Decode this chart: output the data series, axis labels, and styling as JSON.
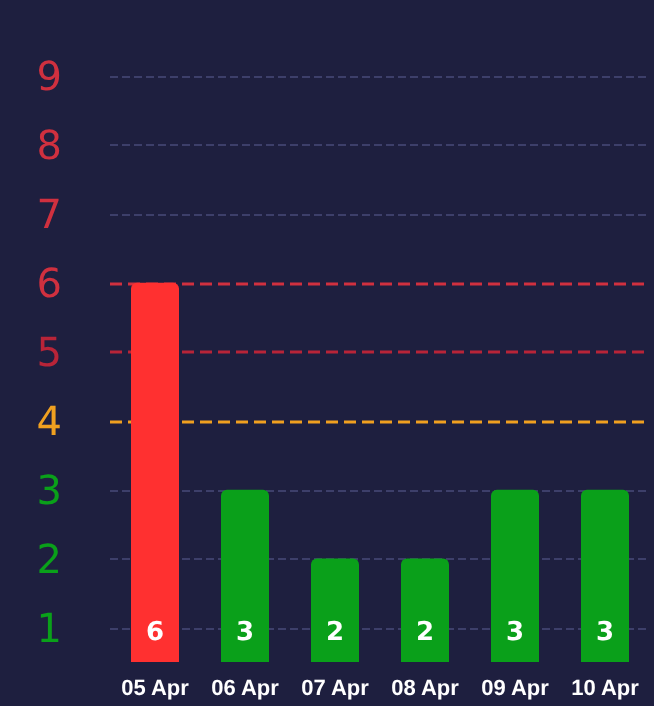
{
  "chart_data": {
    "type": "bar",
    "categories": [
      "05 Apr",
      "06 Apr",
      "07 Apr",
      "08 Apr",
      "09 Apr",
      "10 Apr"
    ],
    "values": [
      6,
      3,
      2,
      2,
      3,
      3
    ],
    "colors": [
      "#ff3030",
      "#0aa01a",
      "#0aa01a",
      "#0aa01a",
      "#0aa01a",
      "#0aa01a"
    ],
    "ylim": [
      0.5,
      9
    ],
    "yticks": [
      1,
      2,
      3,
      4,
      5,
      6,
      7,
      8,
      9
    ],
    "ref_lines": [
      {
        "axis": "y",
        "value": 4,
        "color": "#f0a020",
        "line_style": "dashed"
      },
      {
        "axis": "y",
        "value": 5,
        "color": "#b82438",
        "line_style": "dashed"
      },
      {
        "axis": "y",
        "value": 6,
        "color": "#d0303f",
        "line_style": "dashed"
      }
    ],
    "grid": "y",
    "data_labels": true
  }
}
